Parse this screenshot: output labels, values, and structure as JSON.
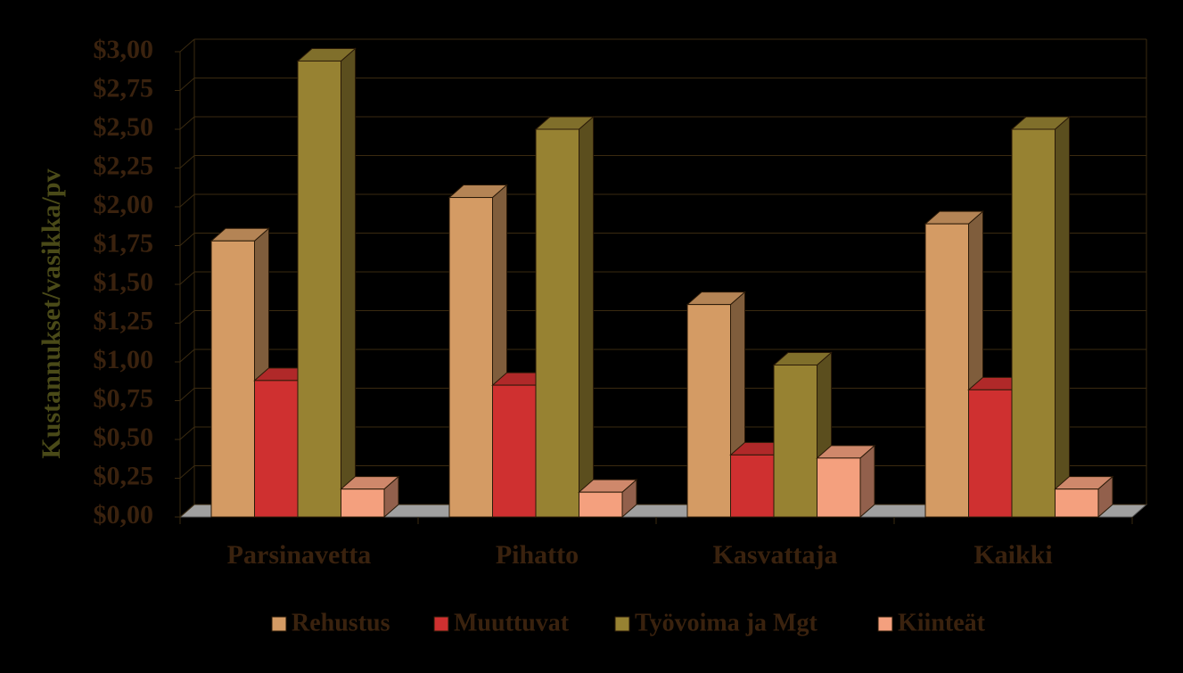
{
  "chart_data": {
    "type": "bar3d",
    "y_label": "Kustannukset/vasikka/pv",
    "categories": [
      "Parsinavetta",
      "Pihatto",
      "Kasvattaja",
      "Kaikki"
    ],
    "series": [
      {
        "name": "Rehustus",
        "color": "#d49b64",
        "values": [
          1.78,
          2.06,
          1.37,
          1.89
        ]
      },
      {
        "name": "Muuttuvat",
        "color": "#cf3030",
        "values": [
          0.88,
          0.85,
          0.4,
          0.82
        ]
      },
      {
        "name": "Työvoima ja Mgt",
        "color": "#978232",
        "values": [
          2.94,
          2.5,
          0.98,
          2.5
        ]
      },
      {
        "name": "Kiinteät",
        "color": "#f4a07e",
        "values": [
          0.18,
          0.16,
          0.38,
          0.18
        ]
      }
    ],
    "ylim": [
      0,
      3
    ],
    "yticks": [
      {
        "value": 0,
        "label": "$0,00"
      },
      {
        "value": 0.25,
        "label": "$0,25"
      },
      {
        "value": 0.5,
        "label": "$0,50"
      },
      {
        "value": 0.75,
        "label": "$0,75"
      },
      {
        "value": 1,
        "label": "$1,00"
      },
      {
        "value": 1.25,
        "label": "$1,25"
      },
      {
        "value": 1.5,
        "label": "$1,50"
      },
      {
        "value": 1.75,
        "label": "$1,75"
      },
      {
        "value": 2,
        "label": "$2,00"
      },
      {
        "value": 2.25,
        "label": "$2,25"
      },
      {
        "value": 2.5,
        "label": "$2,50"
      },
      {
        "value": 2.75,
        "label": "$2,75"
      },
      {
        "value": 3,
        "label": "$3,00"
      }
    ],
    "grid": true,
    "legend": "bottom"
  }
}
